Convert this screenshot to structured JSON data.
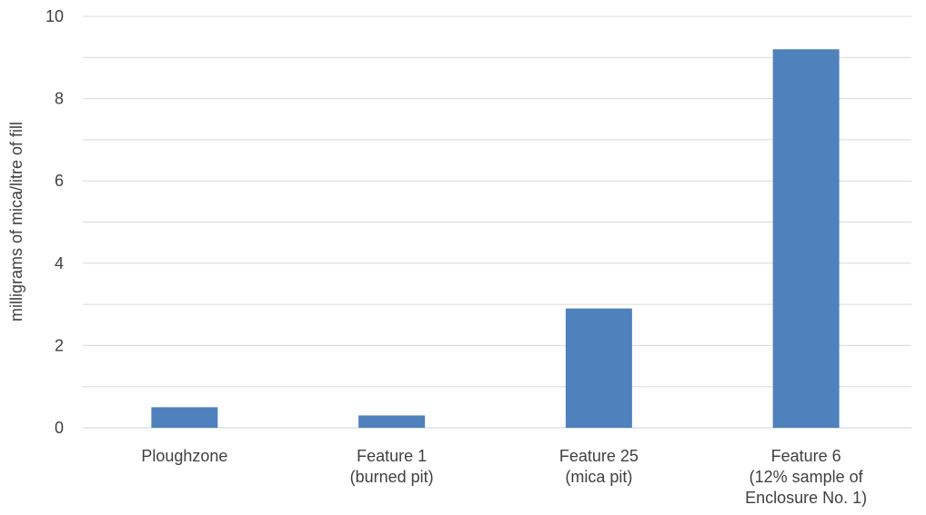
{
  "chart_data": {
    "type": "bar",
    "title": "",
    "xlabel": "",
    "ylabel": "milligrams of mica/litre of fill",
    "ylim": [
      0,
      10
    ],
    "yticks": [
      0,
      2,
      4,
      6,
      8,
      10
    ],
    "ytick_labels": [
      "0",
      "2",
      "4",
      "6",
      "8",
      "10"
    ],
    "grid": true,
    "legend": "none",
    "bar_color": "#4f81bd",
    "categories": [
      [
        "Ploughzone"
      ],
      [
        "Feature 1",
        "(burned pit)"
      ],
      [
        "Feature 25",
        "(mica pit)"
      ],
      [
        "Feature 6",
        "(12% sample of",
        "Enclosure No. 1)"
      ]
    ],
    "values": [
      0.5,
      0.3,
      2.9,
      9.2
    ]
  }
}
